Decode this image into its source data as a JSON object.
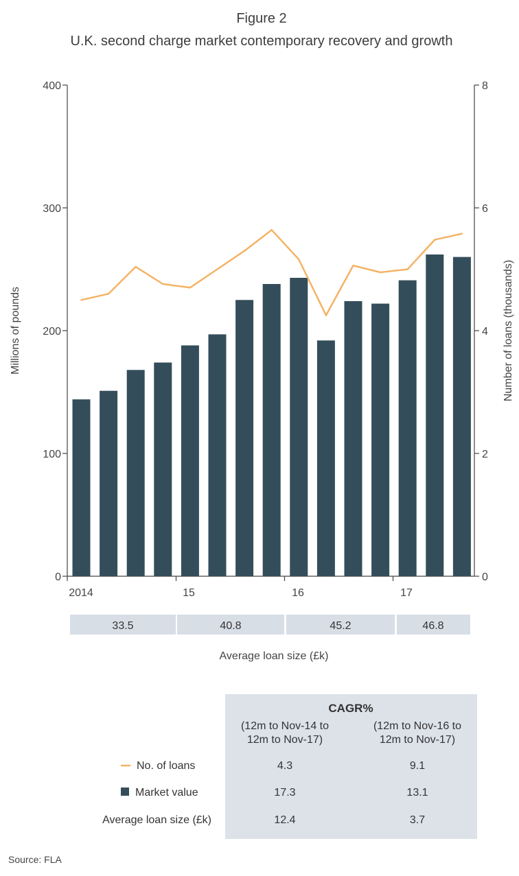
{
  "figure": {
    "label": "Figure 2",
    "title": "U.K. second charge market contemporary recovery and growth"
  },
  "colors": {
    "bar": "#344d5a",
    "line": "#f4b366",
    "band": "#d8dee6",
    "table_bg": "#dde2e9",
    "axis": "#444444"
  },
  "chart_data": {
    "type": "bar",
    "x_tick_labels": [
      "2014",
      "15",
      "16",
      "17"
    ],
    "x_tick_positions": [
      0,
      4,
      8,
      12
    ],
    "left_axis": {
      "label": "Millions of pounds",
      "ylim": [
        0,
        400
      ],
      "ticks": [
        "0",
        "100",
        "200",
        "300",
        "400"
      ]
    },
    "right_axis": {
      "label": "Number of loans (thousands)",
      "ylim": [
        0,
        8
      ],
      "ticks": [
        "0",
        "2",
        "4",
        "6",
        "8"
      ]
    },
    "series": [
      {
        "name": "Market value",
        "kind": "bar",
        "axis": "left",
        "values": [
          144,
          151,
          168,
          174,
          188,
          197,
          225,
          238,
          243,
          192,
          224,
          222,
          241,
          262,
          260
        ]
      },
      {
        "name": "No. of loans",
        "kind": "line",
        "axis": "right",
        "values": [
          4.5,
          4.6,
          5.04,
          4.76,
          4.7,
          5.0,
          5.3,
          5.64,
          5.16,
          4.25,
          5.06,
          4.95,
          5.0,
          5.48,
          5.58
        ]
      }
    ]
  },
  "avg_loan_band": {
    "label": "Average loan size (£k)",
    "cells": [
      "33.5",
      "40.8",
      "45.2",
      "46.8"
    ]
  },
  "cagr_table": {
    "header": "CAGR%",
    "col1": [
      "(12m to Nov-14 to",
      "12m to Nov-17)"
    ],
    "col2": [
      "(12m to Nov-16 to",
      "12m to Nov-17)"
    ],
    "rows": [
      {
        "label": "No. of loans",
        "v1": "4.3",
        "v2": "9.1"
      },
      {
        "label": "Market value",
        "v1": "17.3",
        "v2": "13.1"
      },
      {
        "label": "Average loan size (£k)",
        "v1": "12.4",
        "v2": "3.7"
      }
    ]
  },
  "source": "Source: FLA"
}
